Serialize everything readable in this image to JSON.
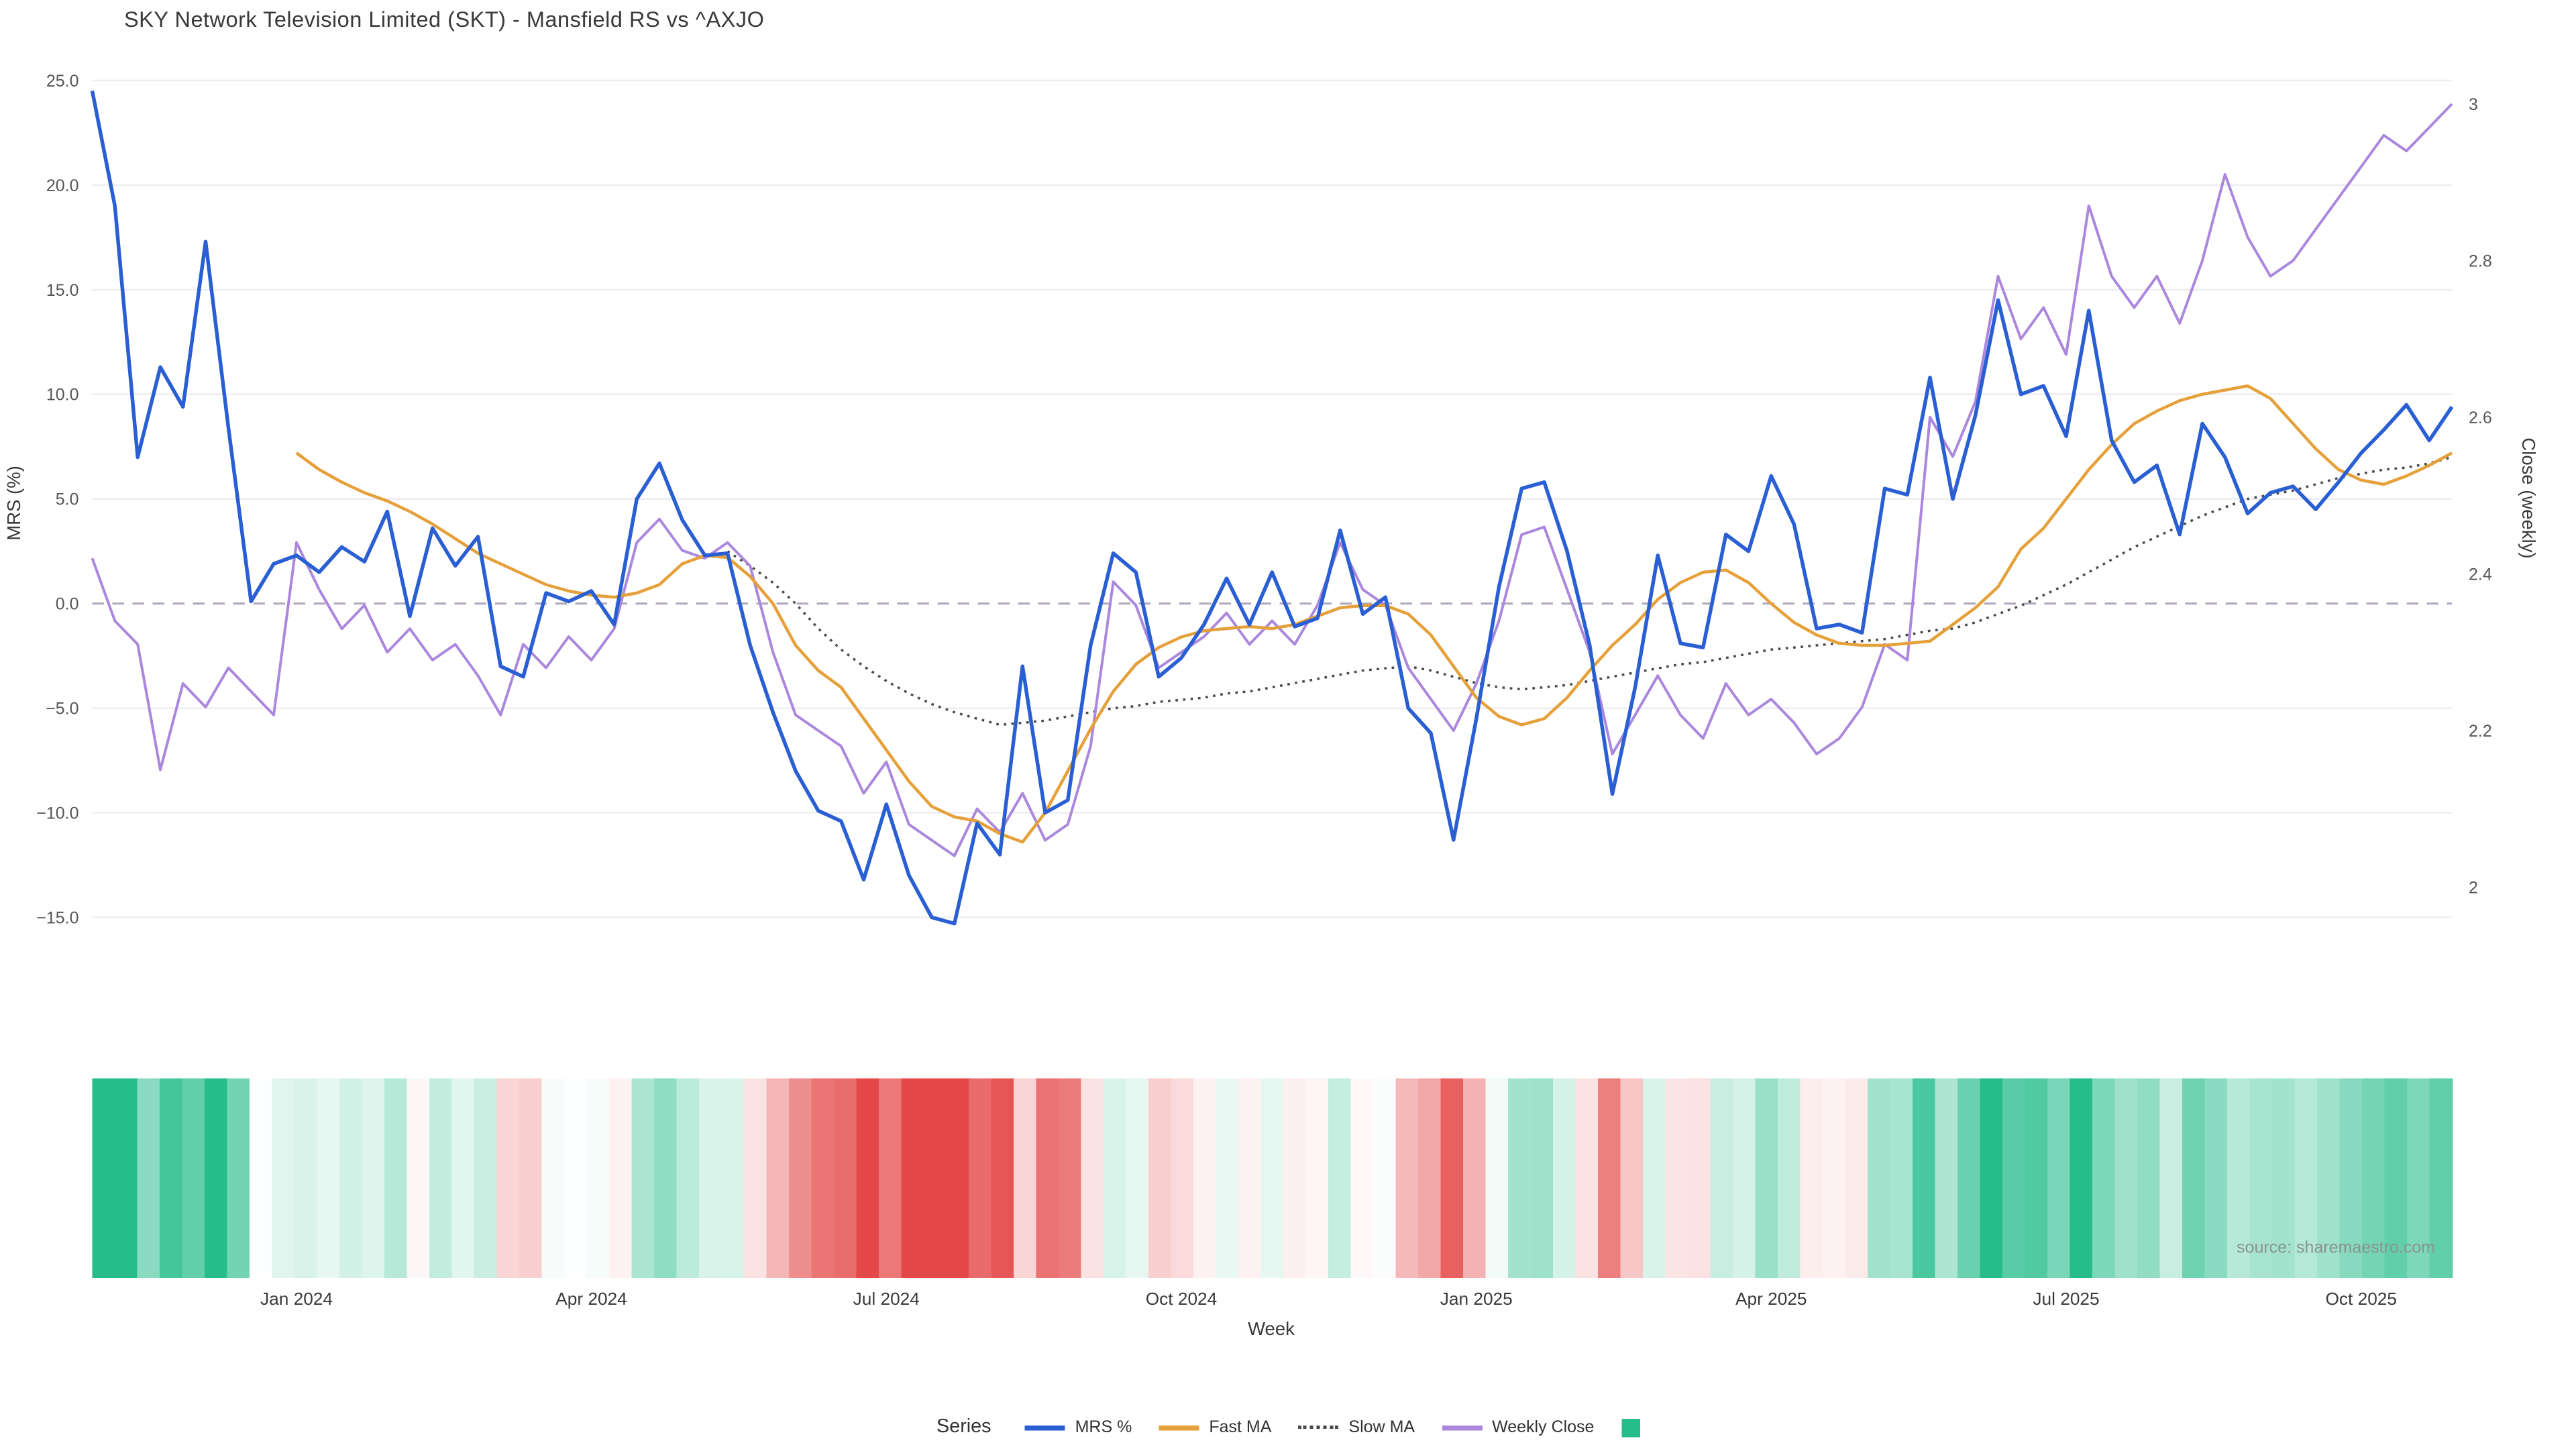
{
  "title": "SKY Network Television Limited (SKT) - Mansfield RS vs ^AXJO",
  "source_note": "source: sharemaestro.com",
  "axes": {
    "left_label": "MRS (%)",
    "right_label": "Close (weekly)",
    "x_label": "Week"
  },
  "legend": {
    "title": "Series",
    "items": [
      {
        "label": "MRS %",
        "type": "line",
        "color": "#2a5fd4",
        "icon": "mrs-line-swatch"
      },
      {
        "label": "Fast MA",
        "type": "line",
        "color": "#e5a03a",
        "icon": "fast-ma-line-swatch"
      },
      {
        "label": "Slow MA",
        "type": "dotted-line",
        "color": "#4a4a4a",
        "icon": "slow-ma-dotted-swatch"
      },
      {
        "label": "Weekly Close",
        "type": "line",
        "color": "#ab87dd",
        "icon": "weekly-close-line-swatch"
      },
      {
        "label": "",
        "type": "square",
        "color": "#26bd8b",
        "icon": "heatmap-square-swatch"
      }
    ]
  },
  "chart_data": {
    "type": "line",
    "x_unit": "week",
    "n_points": 105,
    "x_ticks": [
      {
        "index": 9,
        "label": "Jan 2024"
      },
      {
        "index": 22,
        "label": "Apr 2024"
      },
      {
        "index": 35,
        "label": "Jul 2024"
      },
      {
        "index": 48,
        "label": "Oct 2024"
      },
      {
        "index": 61,
        "label": "Jan 2025"
      },
      {
        "index": 74,
        "label": "Apr 2025"
      },
      {
        "index": 87,
        "label": "Jul 2025"
      },
      {
        "index": 100,
        "label": "Oct 2025"
      }
    ],
    "left_axis": {
      "label": "MRS (%)",
      "min": -15,
      "max": 25,
      "ticks": [
        25,
        20,
        15,
        10,
        5,
        0,
        -5,
        -10,
        -15
      ],
      "tick_labels": [
        "25.0",
        "20.0",
        "15.0",
        "10.0",
        "5.0",
        "0.0",
        "−5.0",
        "−10.0",
        "−15.0"
      ]
    },
    "right_axis": {
      "label": "Close (weekly)",
      "min": 2,
      "max": 3,
      "ticks": [
        3,
        2.8,
        2.6,
        2.4,
        2.2,
        2
      ],
      "tick_labels": [
        "3",
        "2.8",
        "2.6",
        "2.4",
        "2.2",
        "2"
      ]
    },
    "grid_color": "#ededf2",
    "zero_line_color": "#b0a6bb",
    "series": {
      "mrs": {
        "name": "MRS %",
        "color": "#2a5fd4",
        "axis": "left",
        "values": [
          24.5,
          19.0,
          7.0,
          11.3,
          9.4,
          17.3,
          8.4,
          0.1,
          1.9,
          2.3,
          1.5,
          2.7,
          2.0,
          4.4,
          -0.6,
          3.6,
          1.8,
          3.2,
          -3.0,
          -3.5,
          0.5,
          0.1,
          0.6,
          -1.0,
          5.0,
          6.7,
          4.0,
          2.3,
          2.4,
          -2.0,
          -5.2,
          -8.0,
          -9.9,
          -10.4,
          -13.2,
          -9.6,
          -13.0,
          -15.0,
          -15.3,
          -10.5,
          -12.0,
          -3.0,
          -10.0,
          -9.4,
          -2.0,
          2.4,
          1.5,
          -3.5,
          -2.6,
          -1.0,
          1.2,
          -1.0,
          1.5,
          -1.1,
          -0.7,
          3.5,
          -0.5,
          0.3,
          -5.0,
          -6.2,
          -11.3,
          -5.5,
          0.8,
          5.5,
          5.8,
          2.5,
          -2.0,
          -9.1,
          -4.0,
          2.3,
          -1.9,
          -2.1,
          3.3,
          2.5,
          6.1,
          3.8,
          -1.2,
          -1.0,
          -1.4,
          5.5,
          5.2,
          10.8,
          5.0,
          9.0,
          14.5,
          10.0,
          10.4,
          8.0,
          14.0,
          7.8,
          5.8,
          6.6,
          3.3,
          8.6,
          7.0,
          4.3,
          5.3,
          5.6,
          4.5,
          5.8,
          7.2,
          8.3,
          9.5,
          7.8,
          9.4
        ]
      },
      "fast_ma": {
        "name": "Fast MA",
        "color": "#e5a03a",
        "axis": "left",
        "values": [
          null,
          null,
          null,
          null,
          null,
          null,
          null,
          null,
          null,
          7.2,
          6.4,
          5.8,
          5.3,
          4.9,
          4.4,
          3.8,
          3.1,
          2.4,
          1.9,
          1.4,
          0.9,
          0.6,
          0.4,
          0.3,
          0.5,
          0.9,
          1.9,
          2.3,
          2.2,
          1.3,
          0.0,
          -2.0,
          -3.2,
          -4.0,
          -5.5,
          -7.0,
          -8.5,
          -9.7,
          -10.2,
          -10.4,
          -11.0,
          -11.4,
          -10.0,
          -8.0,
          -6.0,
          -4.2,
          -2.9,
          -2.1,
          -1.6,
          -1.3,
          -1.2,
          -1.1,
          -1.2,
          -1.0,
          -0.6,
          -0.2,
          -0.1,
          -0.1,
          -0.5,
          -1.5,
          -3.0,
          -4.5,
          -5.4,
          -5.8,
          -5.5,
          -4.5,
          -3.2,
          -2.0,
          -1.0,
          0.2,
          1.0,
          1.5,
          1.6,
          1.0,
          0.0,
          -0.9,
          -1.5,
          -1.9,
          -2.0,
          -2.0,
          -1.9,
          -1.8,
          -1.0,
          -0.2,
          0.8,
          2.6,
          3.6,
          5.0,
          6.4,
          7.6,
          8.6,
          9.2,
          9.7,
          10.0,
          10.2,
          10.4,
          9.8,
          8.6,
          7.4,
          6.4,
          5.9,
          5.7,
          6.1,
          6.6,
          7.2
        ]
      },
      "slow_ma": {
        "name": "Slow MA",
        "color": "#4a4a4a",
        "style": "dotted",
        "axis": "left",
        "values": [
          null,
          null,
          null,
          null,
          null,
          null,
          null,
          null,
          null,
          null,
          null,
          null,
          null,
          null,
          null,
          null,
          null,
          null,
          null,
          null,
          null,
          null,
          null,
          null,
          null,
          null,
          null,
          null,
          2.5,
          1.8,
          1.0,
          0.0,
          -1.2,
          -2.2,
          -3.0,
          -3.7,
          -4.3,
          -4.8,
          -5.2,
          -5.5,
          -5.8,
          -5.7,
          -5.6,
          -5.4,
          -5.2,
          -5.0,
          -4.9,
          -4.7,
          -4.6,
          -4.5,
          -4.3,
          -4.2,
          -4.0,
          -3.8,
          -3.6,
          -3.4,
          -3.2,
          -3.1,
          -3.0,
          -3.2,
          -3.5,
          -3.8,
          -4.0,
          -4.1,
          -4.0,
          -3.9,
          -3.7,
          -3.5,
          -3.3,
          -3.1,
          -2.9,
          -2.8,
          -2.6,
          -2.4,
          -2.2,
          -2.1,
          -2.0,
          -1.9,
          -1.8,
          -1.7,
          -1.5,
          -1.3,
          -1.2,
          -0.9,
          -0.5,
          -0.1,
          0.4,
          0.9,
          1.5,
          2.1,
          2.7,
          3.2,
          3.7,
          4.2,
          4.6,
          5.0,
          5.2,
          5.4,
          5.7,
          6.0,
          6.2,
          6.4,
          6.5,
          6.7,
          7.0
        ]
      },
      "weekly_close": {
        "name": "Weekly Close",
        "color": "#ab87dd",
        "axis": "right",
        "values": [
          2.42,
          2.34,
          2.31,
          2.15,
          2.26,
          2.23,
          2.28,
          2.25,
          2.22,
          2.44,
          2.38,
          2.33,
          2.36,
          2.3,
          2.33,
          2.29,
          2.31,
          2.27,
          2.22,
          2.31,
          2.28,
          2.32,
          2.29,
          2.33,
          2.44,
          2.47,
          2.43,
          2.42,
          2.44,
          2.41,
          2.3,
          2.22,
          2.2,
          2.18,
          2.12,
          2.16,
          2.08,
          2.06,
          2.04,
          2.1,
          2.07,
          2.12,
          2.06,
          2.08,
          2.18,
          2.39,
          2.36,
          2.28,
          2.3,
          2.32,
          2.35,
          2.31,
          2.34,
          2.31,
          2.36,
          2.44,
          2.38,
          2.36,
          2.28,
          2.24,
          2.2,
          2.26,
          2.34,
          2.45,
          2.46,
          2.38,
          2.3,
          2.17,
          2.22,
          2.27,
          2.22,
          2.19,
          2.26,
          2.22,
          2.24,
          2.21,
          2.17,
          2.19,
          2.23,
          2.31,
          2.29,
          2.6,
          2.55,
          2.62,
          2.78,
          2.7,
          2.74,
          2.68,
          2.87,
          2.78,
          2.74,
          2.78,
          2.72,
          2.8,
          2.91,
          2.83,
          2.78,
          2.8,
          2.84,
          2.88,
          2.92,
          2.96,
          2.94,
          2.97,
          3.0
        ]
      }
    },
    "heatmap": {
      "source": "mrs",
      "positive_color": "#26bd8b",
      "negative_color": "#e54848",
      "saturation_abs": 13
    }
  }
}
